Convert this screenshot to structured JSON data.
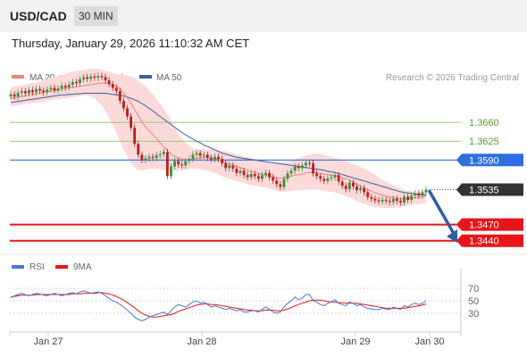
{
  "header": {
    "symbol": "USD/CAD",
    "timeframe": "30 MIN"
  },
  "timestamp": "Thursday, January 29, 2026 11:10:32 AM CET",
  "legend": {
    "ma20": "MA 20 + Bollinger Bands",
    "ma50": "MA 50",
    "credit": "Research © 2026 Trading Central"
  },
  "rsi_legend": {
    "rsi": "RSI",
    "ma9": "9MA"
  },
  "colors": {
    "resistance": "#8fcc6a",
    "pivot": "#2f6fe0",
    "support": "#e8151b",
    "current": "#333333",
    "ma20": "#f08080",
    "ma50": "#3a5f9a",
    "band": "#fcdada",
    "candle_up": "#3a8f3a",
    "candle_down": "#b8231f",
    "rsi": "#4a78d4",
    "rsi_ma": "#e8151b",
    "arrow": "#2f5d9e"
  },
  "chart_data": {
    "type": "candlestick",
    "x_ticks": [
      "Jan 27",
      "Jan 28",
      "Jan 29",
      "Jan 30"
    ],
    "ylim": [
      1.3418,
      1.3758
    ],
    "levels": [
      {
        "label": "1.3660",
        "value": 1.366,
        "kind": "resistance"
      },
      {
        "label": "1.3625",
        "value": 1.3625,
        "kind": "resistance"
      },
      {
        "label": "1.3590",
        "value": 1.359,
        "kind": "pivot"
      },
      {
        "label": "1.3535",
        "value": 1.3535,
        "kind": "current"
      },
      {
        "label": "1.3470",
        "value": 1.347,
        "kind": "support"
      },
      {
        "label": "1.3440",
        "value": 1.344,
        "kind": "support"
      }
    ],
    "close": [
      1.3712,
      1.3708,
      1.3715,
      1.3718,
      1.3714,
      1.372,
      1.3716,
      1.3722,
      1.3719,
      1.3716,
      1.3721,
      1.3724,
      1.3719,
      1.3723,
      1.3728,
      1.3725,
      1.373,
      1.3735,
      1.3733,
      1.374,
      1.3744,
      1.3741,
      1.3745,
      1.3743,
      1.3746,
      1.3744,
      1.3738,
      1.3731,
      1.3724,
      1.3718,
      1.37,
      1.3686,
      1.3671,
      1.365,
      1.362,
      1.36,
      1.359,
      1.3593,
      1.3596,
      1.3594,
      1.3599,
      1.3601,
      1.3605,
      1.356,
      1.3578,
      1.3588,
      1.3582,
      1.358,
      1.3588,
      1.3592,
      1.36,
      1.3603,
      1.3598,
      1.36,
      1.3594,
      1.3591,
      1.3596,
      1.3592,
      1.3584,
      1.3575,
      1.358,
      1.3574,
      1.3566,
      1.357,
      1.3562,
      1.3558,
      1.3564,
      1.356,
      1.3555,
      1.3562,
      1.3566,
      1.3558,
      1.3552,
      1.3545,
      1.354,
      1.3555,
      1.3565,
      1.357,
      1.3578,
      1.3575,
      1.358,
      1.3585,
      1.3584,
      1.3565,
      1.356,
      1.3555,
      1.3551,
      1.3556,
      1.3558,
      1.3562,
      1.355,
      1.3542,
      1.3536,
      1.3548,
      1.3541,
      1.3534,
      1.3538,
      1.353,
      1.3521,
      1.3518,
      1.3515,
      1.3513,
      1.3516,
      1.3514,
      1.3512,
      1.3518,
      1.3514,
      1.3511,
      1.3522,
      1.3516,
      1.3524,
      1.3528,
      1.3524,
      1.353,
      1.3535
    ],
    "ma20": [
      1.3705,
      1.3706,
      1.3707,
      1.3708,
      1.3709,
      1.3711,
      1.3712,
      1.3713,
      1.3714,
      1.3716,
      1.3717,
      1.3718,
      1.3719,
      1.372,
      1.3722,
      1.3723,
      1.3724,
      1.3725,
      1.3726,
      1.3727,
      1.3728,
      1.3729,
      1.373,
      1.3731,
      1.3732,
      1.3733,
      1.3733,
      1.3732,
      1.373,
      1.3727,
      1.3722,
      1.3715,
      1.3706,
      1.3696,
      1.3684,
      1.3672,
      1.3661,
      1.3652,
      1.3644,
      1.3637,
      1.363,
      1.3622,
      1.3615,
      1.3607,
      1.3601,
      1.3597,
      1.3594,
      1.3592,
      1.3591,
      1.3591,
      1.3592,
      1.3593,
      1.3594,
      1.3595,
      1.3595,
      1.3594,
      1.3593,
      1.3591,
      1.3588,
      1.3585,
      1.3583,
      1.3581,
      1.3578,
      1.3576,
      1.3573,
      1.3571,
      1.3569,
      1.3567,
      1.3565,
      1.3564,
      1.3562,
      1.356,
      1.3559,
      1.3557,
      1.3556,
      1.3557,
      1.3558,
      1.356,
      1.3562,
      1.3563,
      1.3564,
      1.3566,
      1.3567,
      1.3567,
      1.3566,
      1.3565,
      1.3564,
      1.3563,
      1.3562,
      1.3561,
      1.3559,
      1.3557,
      1.3555,
      1.3552,
      1.3549,
      1.3545,
      1.3541,
      1.3538,
      1.3535,
      1.3532,
      1.3529,
      1.3527,
      1.3525,
      1.3523,
      1.3521,
      1.352,
      1.3519,
      1.3518,
      1.3518,
      1.3518,
      1.3519,
      1.352,
      1.3521,
      1.3522,
      1.3523
    ],
    "bb_upper": [
      1.3725,
      1.3727,
      1.3728,
      1.3729,
      1.373,
      1.3732,
      1.3733,
      1.3734,
      1.3736,
      1.3738,
      1.374,
      1.3742,
      1.3744,
      1.3746,
      1.3748,
      1.375,
      1.3752,
      1.3754,
      1.3755,
      1.3757,
      1.3758,
      1.3759,
      1.376,
      1.376,
      1.3759,
      1.3758,
      1.3756,
      1.3754,
      1.3752,
      1.375,
      1.3749,
      1.3748,
      1.3747,
      1.3745,
      1.3742,
      1.3738,
      1.3733,
      1.3727,
      1.372,
      1.3712,
      1.3703,
      1.3694,
      1.3685,
      1.3675,
      1.3664,
      1.3652,
      1.364,
      1.363,
      1.3622,
      1.3616,
      1.3612,
      1.361,
      1.3609,
      1.3609,
      1.3609,
      1.3609,
      1.3609,
      1.3608,
      1.3607,
      1.3606,
      1.3605,
      1.3603,
      1.3601,
      1.3599,
      1.3597,
      1.3595,
      1.3593,
      1.3592,
      1.359,
      1.3589,
      1.3588,
      1.3587,
      1.3586,
      1.3585,
      1.3585,
      1.3586,
      1.3587,
      1.3589,
      1.3591,
      1.3593,
      1.3596,
      1.3599,
      1.3601,
      1.3602,
      1.3602,
      1.3601,
      1.36,
      1.3598,
      1.3596,
      1.3594,
      1.3592,
      1.359,
      1.3588,
      1.3585,
      1.3583,
      1.358,
      1.3577,
      1.3574,
      1.3571,
      1.3567,
      1.3563,
      1.3558,
      1.3554,
      1.355,
      1.3546,
      1.3543,
      1.354,
      1.3537,
      1.3535,
      1.3533,
      1.3532,
      1.3531,
      1.3531,
      1.3532,
      1.3533
    ],
    "bb_lower": [
      1.369,
      1.3691,
      1.3692,
      1.3693,
      1.3694,
      1.3695,
      1.3696,
      1.3697,
      1.3698,
      1.3699,
      1.37,
      1.3701,
      1.3702,
      1.3703,
      1.3704,
      1.3705,
      1.3706,
      1.3707,
      1.3708,
      1.3709,
      1.371,
      1.371,
      1.3708,
      1.3704,
      1.3698,
      1.369,
      1.368,
      1.3668,
      1.3655,
      1.364,
      1.3625,
      1.361,
      1.3596,
      1.3584,
      1.3576,
      1.3572,
      1.3571,
      1.3572,
      1.3573,
      1.3574,
      1.3574,
      1.3573,
      1.3572,
      1.3571,
      1.357,
      1.357,
      1.357,
      1.3571,
      1.3572,
      1.3573,
      1.3574,
      1.3574,
      1.3573,
      1.3572,
      1.357,
      1.3568,
      1.3566,
      1.3563,
      1.356,
      1.3557,
      1.3555,
      1.3553,
      1.3551,
      1.3549,
      1.3547,
      1.3545,
      1.3543,
      1.3542,
      1.3541,
      1.354,
      1.3539,
      1.3537,
      1.3535,
      1.3533,
      1.3531,
      1.3531,
      1.3532,
      1.3533,
      1.3534,
      1.3534,
      1.3534,
      1.3535,
      1.3535,
      1.3535,
      1.3535,
      1.3534,
      1.3533,
      1.3532,
      1.3531,
      1.353,
      1.3528,
      1.3526,
      1.3523,
      1.352,
      1.3517,
      1.3514,
      1.3511,
      1.3508,
      1.3506,
      1.3504,
      1.3503,
      1.3502,
      1.3501,
      1.3501,
      1.3501,
      1.3501,
      1.3502,
      1.3503,
      1.3504,
      1.3505,
      1.3506,
      1.3507,
      1.3508,
      1.3509,
      1.351
    ],
    "ma50": [
      1.3697,
      1.3698,
      1.3699,
      1.37,
      1.3701,
      1.3702,
      1.3703,
      1.3704,
      1.3705,
      1.3706,
      1.3707,
      1.3708,
      1.3709,
      1.371,
      1.3711,
      1.3711,
      1.3712,
      1.3712,
      1.3713,
      1.3713,
      1.3714,
      1.3714,
      1.3714,
      1.3714,
      1.3714,
      1.3714,
      1.3714,
      1.3713,
      1.3712,
      1.3711,
      1.371,
      1.3709,
      1.3707,
      1.3705,
      1.3702,
      1.3699,
      1.3695,
      1.3691,
      1.3686,
      1.3681,
      1.3676,
      1.3671,
      1.3666,
      1.3661,
      1.3656,
      1.3651,
      1.3646,
      1.3641,
      1.3637,
      1.3633,
      1.3629,
      1.3625,
      1.3622,
      1.3618,
      1.3615,
      1.3612,
      1.3609,
      1.3606,
      1.3603,
      1.3601,
      1.3599,
      1.3597,
      1.3595,
      1.3594,
      1.3593,
      1.3592,
      1.3591,
      1.359,
      1.3589,
      1.3588,
      1.3587,
      1.3586,
      1.3585,
      1.3584,
      1.3583,
      1.3582,
      1.3581,
      1.358,
      1.3579,
      1.3578,
      1.3577,
      1.3576,
      1.3575,
      1.3574,
      1.3573,
      1.3572,
      1.3571,
      1.3569,
      1.3568,
      1.3567,
      1.3565,
      1.3563,
      1.3561,
      1.3559,
      1.3557,
      1.3555,
      1.3553,
      1.3551,
      1.3549,
      1.3547,
      1.3545,
      1.3543,
      1.3541,
      1.3539,
      1.3537,
      1.3535,
      1.3533,
      1.3531,
      1.353,
      1.3529,
      1.3528,
      1.3527,
      1.3526,
      1.3525,
      1.3525
    ],
    "rsi": {
      "ylim": [
        0,
        100
      ],
      "ticks": [
        70,
        50,
        30
      ],
      "values": [
        55,
        58,
        60,
        62,
        60,
        58,
        60,
        62,
        61,
        59,
        58,
        60,
        62,
        60,
        58,
        60,
        62,
        63,
        61,
        64,
        66,
        64,
        62,
        63,
        64,
        62,
        58,
        54,
        50,
        48,
        44,
        40,
        35,
        30,
        24,
        20,
        18,
        20,
        24,
        26,
        28,
        30,
        32,
        28,
        34,
        40,
        44,
        42,
        40,
        44,
        48,
        50,
        46,
        48,
        44,
        40,
        42,
        40,
        38,
        36,
        38,
        36,
        34,
        36,
        32,
        32,
        34,
        34,
        32,
        36,
        40,
        36,
        32,
        30,
        32,
        40,
        46,
        50,
        56,
        52,
        54,
        60,
        60,
        50,
        48,
        44,
        42,
        46,
        48,
        52,
        46,
        44,
        42,
        48,
        46,
        42,
        44,
        40,
        38,
        37,
        36,
        36,
        38,
        37,
        36,
        40,
        38,
        36,
        42,
        40,
        44,
        46,
        44,
        46,
        50
      ],
      "ma": [
        56,
        57,
        58,
        59,
        59,
        59,
        59,
        60,
        60,
        60,
        60,
        60,
        60,
        60,
        60,
        60,
        60,
        61,
        61,
        61,
        62,
        62,
        62,
        62,
        63,
        63,
        62,
        61,
        59,
        57,
        54,
        51,
        47,
        43,
        39,
        34,
        30,
        27,
        25,
        24,
        24,
        25,
        26,
        27,
        28,
        30,
        33,
        35,
        37,
        39,
        41,
        43,
        44,
        45,
        45,
        44,
        44,
        43,
        42,
        41,
        40,
        39,
        38,
        37,
        36,
        35,
        35,
        34,
        34,
        34,
        35,
        35,
        35,
        34,
        34,
        35,
        37,
        39,
        42,
        44,
        46,
        48,
        50,
        51,
        51,
        51,
        50,
        49,
        48,
        48,
        47,
        47,
        46,
        46,
        46,
        46,
        45,
        44,
        43,
        42,
        41,
        40,
        39,
        38,
        38,
        38,
        38,
        38,
        38,
        39,
        40,
        41,
        42,
        43,
        45
      ]
    }
  }
}
